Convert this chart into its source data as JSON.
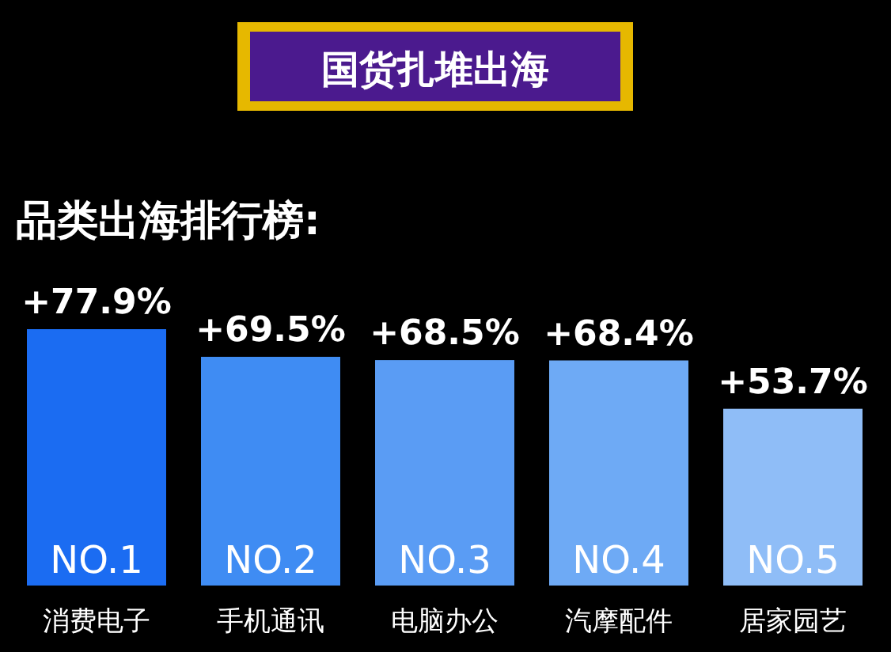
{
  "chart_data": {
    "type": "bar",
    "title": "国货扎堆出海",
    "subtitle": "品类出海排行榜:",
    "categories": [
      "消费电子",
      "手机通讯",
      "电脑办公",
      "汽摩配件",
      "居家园艺"
    ],
    "values": [
      77.9,
      69.5,
      68.5,
      68.4,
      53.7
    ],
    "value_labels": [
      "+77.9%",
      "+69.5%",
      "+68.5%",
      "+68.4%",
      "+53.7%"
    ],
    "colors": [
      "#1b6cf2",
      "#3f8cf3",
      "#5a9cf4",
      "#6eaaf5",
      "#8fbdf7"
    ],
    "annotations": [
      "NO.1",
      "NO.2",
      "NO.3",
      "NO.4",
      "NO.5"
    ]
  }
}
